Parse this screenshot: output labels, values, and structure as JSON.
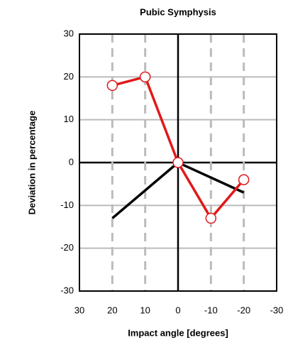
{
  "chart_data": {
    "type": "line",
    "title": "Pubic Symphysis",
    "x_label": "Impact angle [degrees]",
    "y_label": "Deviation in percentage",
    "xlim": [
      30,
      -30
    ],
    "xticks": [
      30,
      20,
      10,
      0,
      -10,
      -20,
      -30
    ],
    "ylim": [
      -30,
      30
    ],
    "yticks": [
      30,
      20,
      10,
      0,
      -10,
      -20,
      -30
    ],
    "grid": true,
    "series": [
      {
        "color": "#e0191b",
        "markers": true,
        "x": [
          20,
          10,
          0,
          -10,
          -20
        ],
        "values": [
          18,
          20,
          0,
          -13,
          -4
        ]
      },
      {
        "color": "#000000",
        "markers": false,
        "x": [
          20,
          0,
          -20
        ],
        "values": [
          -13,
          0,
          -7
        ]
      }
    ]
  }
}
